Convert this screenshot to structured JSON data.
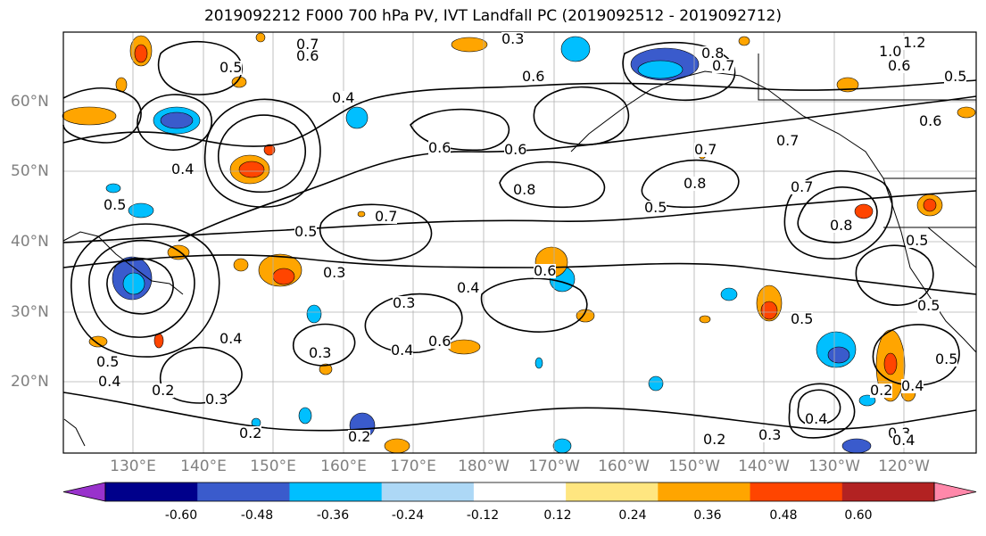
{
  "title": "2019092212 F000 700 hPa PV, IVT Landfall PC (2019092512 - 2019092712)",
  "map": {
    "lat_labels": [
      "60°N",
      "50°N",
      "40°N",
      "30°N",
      "20°N"
    ],
    "lon_labels": [
      "130°E",
      "140°E",
      "150°E",
      "160°E",
      "170°E",
      "180°W",
      "170°W",
      "160°W",
      "150°W",
      "140°W",
      "130°W",
      "120°W"
    ],
    "contour_labels": [
      "0.7",
      "0.6",
      "0.5",
      "0.4",
      "0.8",
      "0.7",
      "0.8",
      "0.6",
      "0.6",
      "0.7",
      "0.4",
      "0.5",
      "0.6",
      "0.8",
      "0.5",
      "0.7",
      "0.6",
      "0.4",
      "0.7",
      "0.5",
      "0.8",
      "0.5",
      "0.3",
      "0.4",
      "0.6",
      "0.4",
      "0.3",
      "0.3",
      "0.5",
      "0.4",
      "0.3",
      "0.2",
      "0.2",
      "0.2",
      "0.3",
      "0.2",
      "0.4",
      "0.3",
      "0.5",
      "0.4",
      "0.5",
      "0.5",
      "0.6",
      "1.0",
      "1.2",
      "0.5",
      "0.6",
      "0.7",
      "0.2",
      "0.4",
      "0.3"
    ]
  },
  "colorbar": {
    "tick_labels": [
      "-0.60",
      "-0.48",
      "-0.36",
      "-0.24",
      "-0.12",
      "0.12",
      "0.24",
      "0.36",
      "0.48",
      "0.60"
    ],
    "colors": [
      "#9932cc",
      "#00008b",
      "#3a5bcc",
      "#00bfff",
      "#add8f6",
      "#ffffff",
      "#ffe680",
      "#ffa500",
      "#ff4500",
      "#b22222",
      "#ff88aa"
    ]
  }
}
